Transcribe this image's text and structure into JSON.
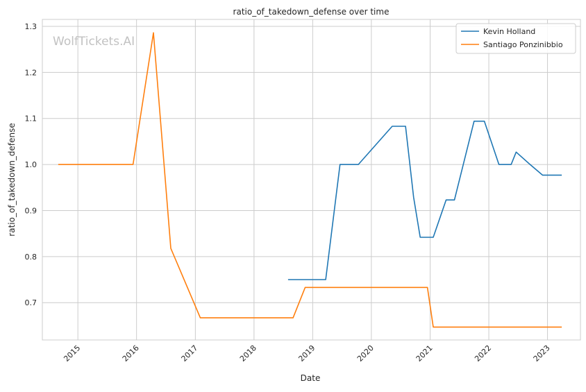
{
  "watermark": "WolfTickets.AI",
  "chart_data": {
    "type": "line",
    "title": "ratio_of_takedown_defense over time",
    "xlabel": "Date",
    "ylabel": "ratio_of_takedown_defense",
    "x_tick_labels": [
      "2015",
      "2016",
      "2017",
      "2018",
      "2019",
      "2020",
      "2021",
      "2022",
      "2023"
    ],
    "y_tick_labels": [
      "0.7",
      "0.8",
      "0.9",
      "1.0",
      "1.1",
      "1.2",
      "1.3"
    ],
    "xlim": [
      "2014-05-25",
      "2023-07-25"
    ],
    "ylim": [
      0.619,
      1.315
    ],
    "grid": true,
    "legend": "top-right",
    "series": [
      {
        "name": "Kevin Holland",
        "color": "#1f77b4",
        "points": [
          [
            "2018-08-01",
            0.75
          ],
          [
            "2018-12-01",
            0.75
          ],
          [
            "2019-03-23",
            0.75
          ],
          [
            "2019-06-20",
            1.0
          ],
          [
            "2019-10-12",
            1.0
          ],
          [
            "2020-05-10",
            1.083
          ],
          [
            "2020-08-01",
            1.083
          ],
          [
            "2020-09-20",
            0.929
          ],
          [
            "2020-10-31",
            0.842
          ],
          [
            "2021-01-20",
            0.842
          ],
          [
            "2021-04-10",
            0.923
          ],
          [
            "2021-06-01",
            0.923
          ],
          [
            "2021-10-01",
            1.094
          ],
          [
            "2021-12-04",
            1.094
          ],
          [
            "2022-03-05",
            1.0
          ],
          [
            "2022-05-20",
            1.0
          ],
          [
            "2022-06-20",
            1.027
          ],
          [
            "2022-09-15",
            1.0
          ],
          [
            "2022-12-01",
            0.977
          ],
          [
            "2023-03-01",
            0.977
          ],
          [
            "2023-03-31",
            0.977
          ]
        ]
      },
      {
        "name": "Santiago Ponzinibbio",
        "color": "#ff7f0e",
        "points": [
          [
            "2014-09-01",
            1.0
          ],
          [
            "2015-06-01",
            1.0
          ],
          [
            "2015-12-10",
            1.0
          ],
          [
            "2016-04-15",
            1.286
          ],
          [
            "2016-08-01",
            0.818
          ],
          [
            "2017-02-01",
            0.667
          ],
          [
            "2017-09-01",
            0.667
          ],
          [
            "2018-07-01",
            0.667
          ],
          [
            "2018-09-01",
            0.667
          ],
          [
            "2018-11-15",
            0.733
          ],
          [
            "2019-06-01",
            0.733
          ],
          [
            "2020-06-01",
            0.733
          ],
          [
            "2020-12-15",
            0.733
          ],
          [
            "2021-01-20",
            0.647
          ],
          [
            "2022-01-01",
            0.647
          ],
          [
            "2023-03-31",
            0.647
          ]
        ]
      }
    ]
  }
}
